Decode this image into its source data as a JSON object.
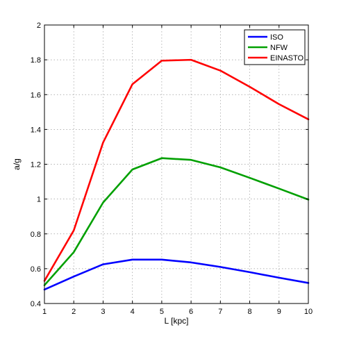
{
  "chart_data": {
    "type": "line",
    "title": "",
    "xlabel": "L [kpc]",
    "ylabel": "a/g",
    "xlim": [
      1,
      10
    ],
    "ylim": [
      0.4,
      2
    ],
    "x": [
      1,
      2,
      3,
      4,
      5,
      6,
      7,
      8,
      9,
      10
    ],
    "xticks": [
      "1",
      "2",
      "3",
      "4",
      "5",
      "6",
      "7",
      "8",
      "9",
      "10"
    ],
    "yticks": [
      "0.4",
      "0.6",
      "0.8",
      "1",
      "1.2",
      "1.4",
      "1.6",
      "1.8",
      "2"
    ],
    "grid": true,
    "legend_position": "top-right",
    "series": [
      {
        "name": "ISO",
        "color": "#0000ff",
        "values": [
          0.48,
          0.555,
          0.625,
          0.652,
          0.652,
          0.636,
          0.61,
          0.58,
          0.548,
          0.518
        ]
      },
      {
        "name": "NFW",
        "color": "#00a000",
        "values": [
          0.505,
          0.695,
          0.98,
          1.17,
          1.235,
          1.225,
          1.182,
          1.122,
          1.06,
          0.997
        ]
      },
      {
        "name": "EINASTO",
        "color": "#ff0000",
        "values": [
          0.53,
          0.82,
          1.325,
          1.66,
          1.795,
          1.8,
          1.738,
          1.645,
          1.545,
          1.458
        ]
      }
    ]
  }
}
